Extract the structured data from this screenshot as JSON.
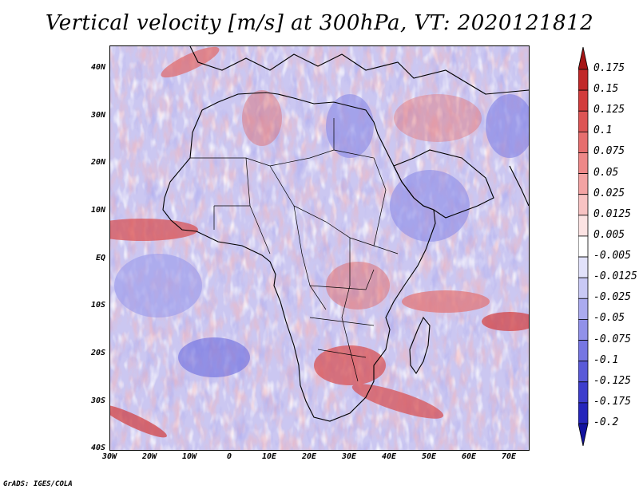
{
  "title": "Vertical velocity [m/s] at 300hPa, VT: 2020121812",
  "credit": "GrADS: IGES/COLA",
  "axes": {
    "lat_labels": [
      "40N",
      "30N",
      "20N",
      "10N",
      "EQ",
      "10S",
      "20S",
      "30S",
      "40S"
    ],
    "lon_labels": [
      "30W",
      "20W",
      "10W",
      "0",
      "10E",
      "20E",
      "30E",
      "40E",
      "50E",
      "60E",
      "70E"
    ]
  },
  "colorbar": {
    "levels": [
      "0.175",
      "0.15",
      "0.125",
      "0.1",
      "0.075",
      "0.05",
      "0.025",
      "0.0125",
      "0.005",
      "-0.005",
      "-0.0125",
      "-0.025",
      "-0.05",
      "-0.075",
      "-0.1",
      "-0.125",
      "-0.175",
      "-0.2"
    ],
    "colors": [
      "#a51414",
      "#c12828",
      "#d23c3c",
      "#dd5555",
      "#e66e6e",
      "#ee8888",
      "#f3a3a3",
      "#f8c3c3",
      "#fce3e3",
      "#ffffff",
      "#e2e2fb",
      "#c9c9f5",
      "#ababef",
      "#9191e9",
      "#7676e2",
      "#5a5ad8",
      "#3d3dcc",
      "#2525bb",
      "#12129f"
    ]
  },
  "map": {
    "region": "Africa",
    "lon_range": [
      -30,
      75
    ],
    "lat_range": [
      -40,
      45
    ]
  }
}
